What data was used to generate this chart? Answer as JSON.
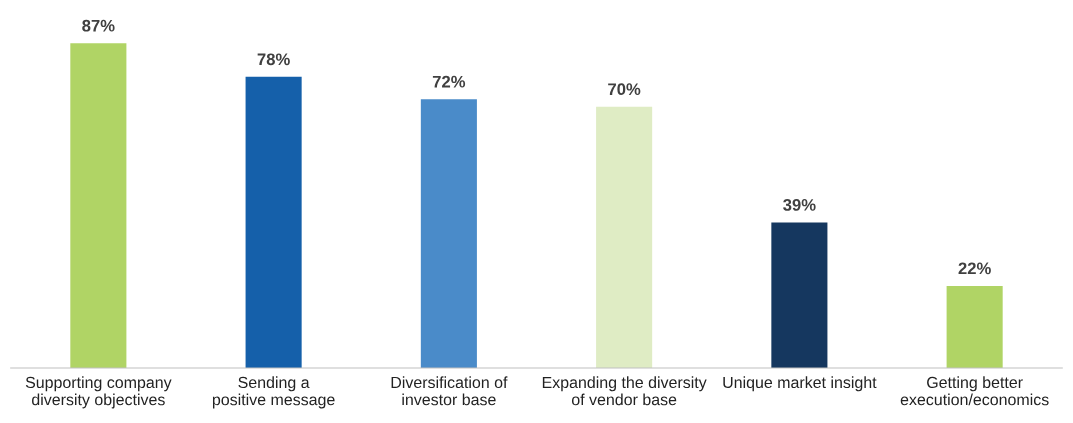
{
  "chart_data": {
    "type": "bar",
    "categories": [
      "Supporting company\ndiversity objectives",
      "Sending a\npositive message",
      "Diversification of\ninvestor base",
      "Expanding the diversity\nof vendor base",
      "Unique market insight",
      "Getting better\nexecution/economics"
    ],
    "values": [
      87,
      78,
      72,
      70,
      39,
      22
    ],
    "value_labels": [
      "87%",
      "78%",
      "72%",
      "70%",
      "39%",
      "22%"
    ],
    "colors": [
      "#b0d465",
      "#1560aa",
      "#4a8bc9",
      "#dfecc4",
      "#15375f",
      "#b0d465"
    ],
    "grid": false
  }
}
